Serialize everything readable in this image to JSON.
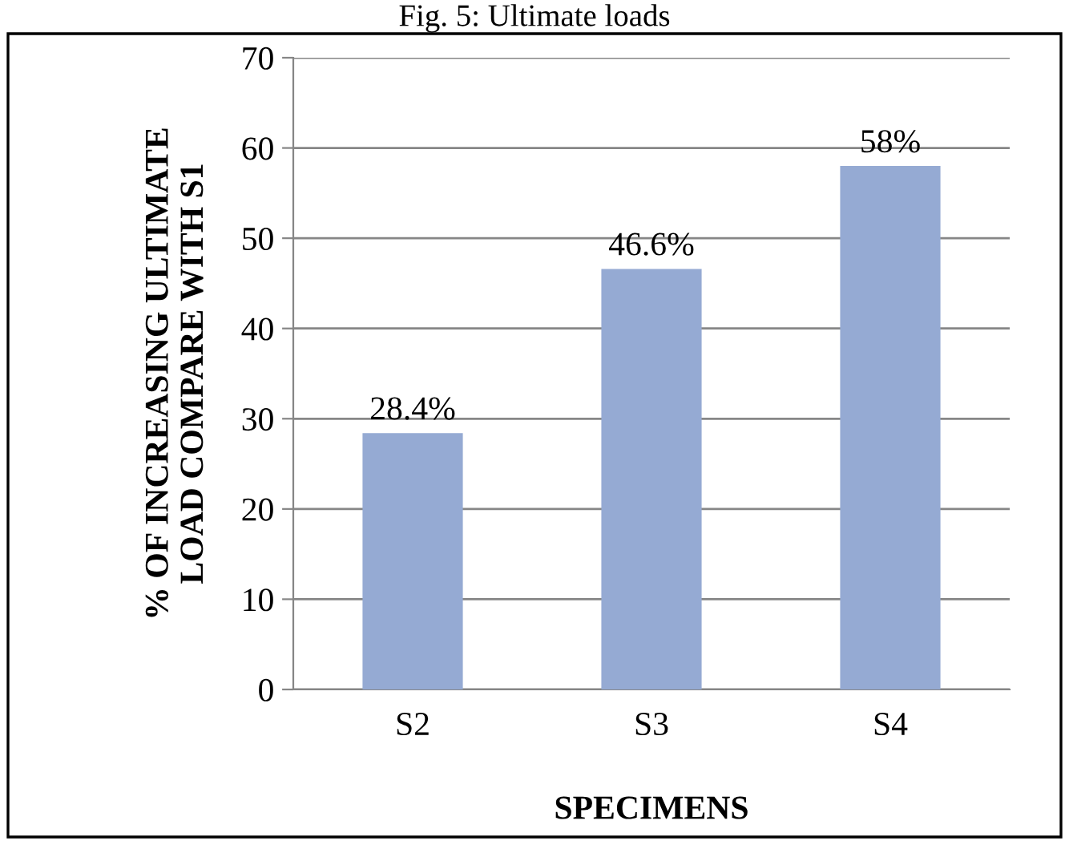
{
  "chart_data": {
    "type": "bar",
    "title": "Fig. 5: Ultimate loads",
    "xlabel": "SPECIMENS",
    "ylabel": "% OF INCREASING ULTIMATE\nLOAD COMPARE WITH S1",
    "categories": [
      "S2",
      "S3",
      "S4"
    ],
    "values": [
      28.4,
      46.6,
      58
    ],
    "value_labels": [
      "28.4%",
      "46.6%",
      "58%"
    ],
    "color": "#95aad3",
    "ylim": [
      0,
      70
    ],
    "yticks": [
      0,
      10,
      20,
      30,
      40,
      50,
      60,
      70
    ],
    "grid": "y",
    "legend": false
  }
}
